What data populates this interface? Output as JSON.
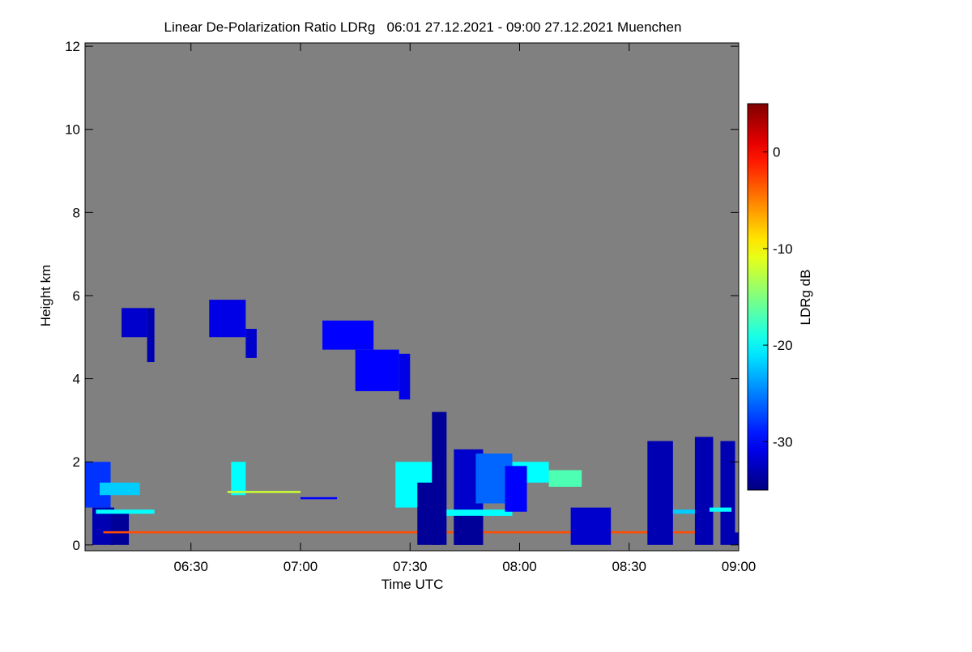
{
  "chart_data": {
    "type": "heatmap",
    "title": "Linear De-Polarization Ratio LDRg   06:01 27.12.2021 - 09:00 27.12.2021 Muenchen",
    "xlabel": "Time UTC",
    "ylabel": "Height km",
    "colorbar_label": "LDRg dB",
    "colormap": "jet",
    "background": "#808080",
    "xlim": [
      361,
      540
    ],
    "xticks": [
      {
        "value": 390,
        "label": "06:30"
      },
      {
        "value": 420,
        "label": "07:00"
      },
      {
        "value": 450,
        "label": "07:30"
      },
      {
        "value": 480,
        "label": "08:00"
      },
      {
        "value": 510,
        "label": "08:30"
      },
      {
        "value": 540,
        "label": "09:00"
      }
    ],
    "ylim": [
      -0.14,
      12.08
    ],
    "yticks": [
      0,
      2,
      4,
      6,
      8,
      10,
      12
    ],
    "clim": [
      -35,
      5
    ],
    "cticks": [
      0,
      -10,
      -20,
      -30
    ],
    "cells": [
      {
        "t0": 371,
        "t1": 378,
        "h0": 5.0,
        "h1": 5.7,
        "ldr": -32
      },
      {
        "t0": 378,
        "t1": 380,
        "h0": 4.4,
        "h1": 5.7,
        "ldr": -33
      },
      {
        "t0": 395,
        "t1": 405,
        "h0": 5.0,
        "h1": 5.9,
        "ldr": -31
      },
      {
        "t0": 405,
        "t1": 408,
        "h0": 4.5,
        "h1": 5.2,
        "ldr": -32
      },
      {
        "t0": 426,
        "t1": 440,
        "h0": 4.7,
        "h1": 5.4,
        "ldr": -30
      },
      {
        "t0": 435,
        "t1": 447,
        "h0": 3.7,
        "h1": 4.7,
        "ldr": -30
      },
      {
        "t0": 447,
        "t1": 450,
        "h0": 3.5,
        "h1": 4.6,
        "ldr": -31
      },
      {
        "t0": 361,
        "t1": 368,
        "h0": 0.9,
        "h1": 2.0,
        "ldr": -28
      },
      {
        "t0": 363,
        "t1": 369,
        "h0": 0,
        "h1": 0.9,
        "ldr": -33
      },
      {
        "t0": 368,
        "t1": 373,
        "h0": 0,
        "h1": 0.8,
        "ldr": -34
      },
      {
        "t0": 401,
        "t1": 405,
        "h0": 1.2,
        "h1": 2.0,
        "ldr": -20
      },
      {
        "t0": 365,
        "t1": 376,
        "h0": 1.2,
        "h1": 1.5,
        "ldr": -22
      },
      {
        "t0": 364,
        "t1": 380,
        "h0": 0.75,
        "h1": 0.85,
        "ldr": -20
      },
      {
        "t0": 366,
        "t1": 532,
        "h0": 0.28,
        "h1": 0.33,
        "ldr": -3
      },
      {
        "t0": 446,
        "t1": 456,
        "h0": 0.9,
        "h1": 2.0,
        "ldr": -20
      },
      {
        "t0": 452,
        "t1": 458,
        "h0": 0,
        "h1": 1.5,
        "ldr": -34
      },
      {
        "t0": 456,
        "t1": 460,
        "h0": 0,
        "h1": 3.2,
        "ldr": -34
      },
      {
        "t0": 462,
        "t1": 470,
        "h0": 0,
        "h1": 2.3,
        "ldr": -32
      },
      {
        "t0": 468,
        "t1": 478,
        "h0": 1.0,
        "h1": 2.2,
        "ldr": -26
      },
      {
        "t0": 478,
        "t1": 488,
        "h0": 1.5,
        "h1": 2.0,
        "ldr": -20
      },
      {
        "t0": 488,
        "t1": 497,
        "h0": 1.4,
        "h1": 1.8,
        "ldr": -17
      },
      {
        "t0": 460,
        "t1": 478,
        "h0": 0.7,
        "h1": 0.85,
        "ldr": -20
      },
      {
        "t0": 476,
        "t1": 482,
        "h0": 0.8,
        "h1": 1.9,
        "ldr": -30
      },
      {
        "t0": 462,
        "t1": 470,
        "h0": 0,
        "h1": 0.7,
        "ldr": -34
      },
      {
        "t0": 515,
        "t1": 522,
        "h0": 0,
        "h1": 2.5,
        "ldr": -33
      },
      {
        "t0": 528,
        "t1": 533,
        "h0": 0,
        "h1": 2.6,
        "ldr": -33
      },
      {
        "t0": 535,
        "t1": 539,
        "h0": 0,
        "h1": 2.5,
        "ldr": -33
      },
      {
        "t0": 522,
        "t1": 528,
        "h0": 0.75,
        "h1": 0.85,
        "ldr": -22
      },
      {
        "t0": 532,
        "t1": 538,
        "h0": 0.8,
        "h1": 0.9,
        "ldr": -20
      },
      {
        "t0": 420,
        "t1": 430,
        "h0": 1.1,
        "h1": 1.15,
        "ldr": -30
      },
      {
        "t0": 400,
        "t1": 420,
        "h0": 1.25,
        "h1": 1.3,
        "ldr": -12
      },
      {
        "t0": 494,
        "t1": 505,
        "h0": 0,
        "h1": 0.9,
        "ldr": -32
      },
      {
        "t0": 538,
        "t1": 540,
        "h0": 0,
        "h1": 0.3,
        "ldr": -33
      }
    ]
  }
}
